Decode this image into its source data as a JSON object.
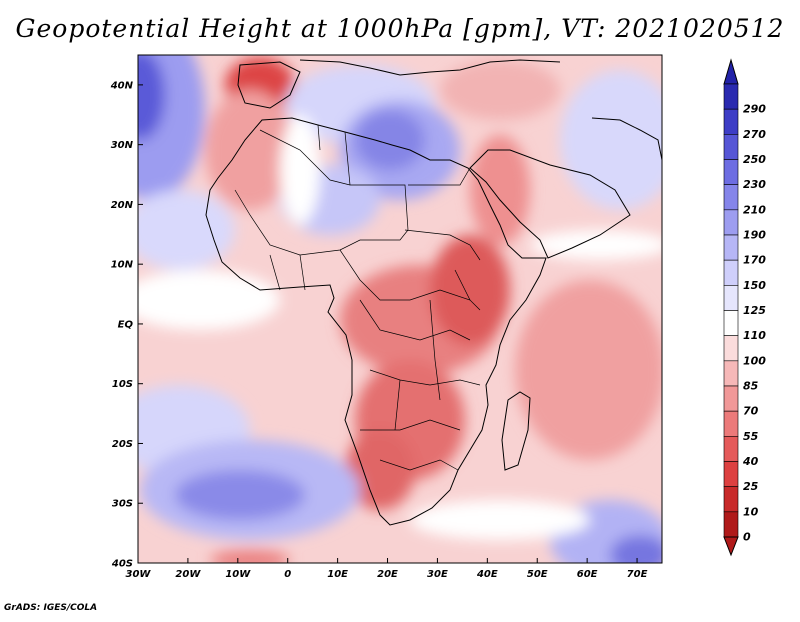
{
  "title": "Geopotential Height at 1000hPa [gpm], VT: 2021020512",
  "credit": "GrADS: IGES/COLA",
  "map": {
    "region": "Africa and surrounding oceans",
    "lon_range": [
      -30,
      75
    ],
    "lat_range": [
      -40,
      45
    ],
    "lat_labels": [
      {
        "lat": 40,
        "text": "40N"
      },
      {
        "lat": 30,
        "text": "30N"
      },
      {
        "lat": 20,
        "text": "20N"
      },
      {
        "lat": 10,
        "text": "10N"
      },
      {
        "lat": 0,
        "text": "EQ"
      },
      {
        "lat": -10,
        "text": "10S"
      },
      {
        "lat": -20,
        "text": "20S"
      },
      {
        "lat": -30,
        "text": "30S"
      },
      {
        "lat": -40,
        "text": "40S"
      }
    ],
    "lon_labels": [
      {
        "lon": -30,
        "text": "30W"
      },
      {
        "lon": -20,
        "text": "20W"
      },
      {
        "lon": -10,
        "text": "10W"
      },
      {
        "lon": 0,
        "text": "0"
      },
      {
        "lon": 10,
        "text": "10E"
      },
      {
        "lon": 20,
        "text": "20E"
      },
      {
        "lon": 30,
        "text": "30E"
      },
      {
        "lon": 40,
        "text": "40E"
      },
      {
        "lon": 50,
        "text": "50E"
      },
      {
        "lon": 60,
        "text": "60E"
      },
      {
        "lon": 70,
        "text": "70E"
      }
    ]
  },
  "colorbar": {
    "levels": [
      "0",
      "10",
      "25",
      "40",
      "55",
      "70",
      "85",
      "100",
      "110",
      "125",
      "150",
      "170",
      "190",
      "210",
      "230",
      "250",
      "270",
      "290"
    ],
    "colors": [
      "#b01a1a",
      "#c82a2a",
      "#dd4040",
      "#e55a5a",
      "#ec7a7a",
      "#f19898",
      "#f6b8b8",
      "#fbdcdc",
      "#ffffff",
      "#e6e6fd",
      "#cfcffb",
      "#b6b6f6",
      "#9d9df0",
      "#8585ea",
      "#6d6de2",
      "#5656d6",
      "#3d3dc6",
      "#2a2ab0"
    ],
    "low_color": "#b01a1a",
    "high_color": "#2222a8"
  }
}
